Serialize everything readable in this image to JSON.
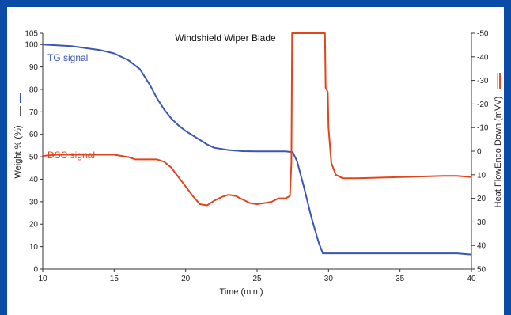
{
  "chart_data": {
    "type": "line",
    "title": "Windshield Wiper Blade",
    "xlabel": "Time (min.)",
    "ylabel_left": "Weight % (%)",
    "ylabel_right": "Heat FlowEndo Down (mVV)",
    "x_ticks": [
      10,
      15,
      20,
      25,
      30,
      35,
      40
    ],
    "y_left_ticks": [
      0,
      10,
      20,
      30,
      40,
      50,
      60,
      70,
      80,
      90,
      100,
      105
    ],
    "y_right_ticks": [
      -50,
      -40,
      -30,
      -20,
      -10,
      0,
      10,
      20,
      30,
      40,
      50
    ],
    "xlim": [
      10,
      40
    ],
    "ylim_left": [
      0,
      105
    ],
    "ylim_right": [
      -50,
      50
    ],
    "grid": false,
    "colors": {
      "tg": "#3a56b5",
      "dsc": "#e2441b",
      "frame": "#0b4aa6",
      "yellow": "#f2c80f",
      "orange": "#e8501e"
    },
    "series": [
      {
        "name": "TG signal",
        "axis": "left",
        "x": [
          10,
          12,
          14,
          15,
          16,
          16.8,
          17.5,
          18,
          18.5,
          19,
          19.5,
          20,
          20.5,
          21,
          21.5,
          22,
          23,
          24,
          25,
          26,
          27,
          27.5,
          27.8,
          28.3,
          28.8,
          29.3,
          29.6,
          30,
          35,
          39,
          40
        ],
        "y": [
          100,
          99.3,
          97.5,
          96,
          93,
          89,
          82,
          76,
          71,
          67,
          64,
          61.5,
          59.5,
          57.5,
          55.5,
          54,
          53,
          52.5,
          52.4,
          52.4,
          52.4,
          52,
          48,
          36,
          23,
          12,
          7,
          7,
          7,
          7,
          6.5
        ]
      },
      {
        "name": "DSC signal",
        "axis": "right",
        "x": [
          10,
          11,
          12,
          13,
          14,
          15,
          16,
          16.5,
          17,
          17.5,
          18,
          18.5,
          19,
          19.5,
          20,
          20.5,
          21,
          21.5,
          22,
          22.5,
          23,
          23.5,
          24,
          24.5,
          25,
          25.5,
          26,
          26.5,
          27,
          27.3,
          27.4,
          27.45,
          29.75,
          29.8,
          29.95,
          30,
          30.2,
          30.5,
          31,
          32,
          35,
          38,
          39,
          40
        ],
        "y": [
          2,
          1.5,
          1.5,
          1.5,
          1.5,
          1.5,
          2.5,
          3.5,
          3.5,
          3.5,
          3.5,
          4.5,
          7,
          11,
          15,
          19,
          22.5,
          23,
          21,
          19.5,
          18.5,
          19,
          20.5,
          22,
          22.5,
          22,
          21.5,
          20,
          20,
          19,
          5,
          -50,
          -50,
          -27,
          -25,
          -10,
          5,
          10,
          11.5,
          11.5,
          11,
          10.5,
          10.5,
          11
        ]
      }
    ],
    "annotations": [
      {
        "text": "TG signal",
        "series": "TG signal"
      },
      {
        "text": "DSC signal",
        "series": "DSC signal"
      }
    ]
  }
}
